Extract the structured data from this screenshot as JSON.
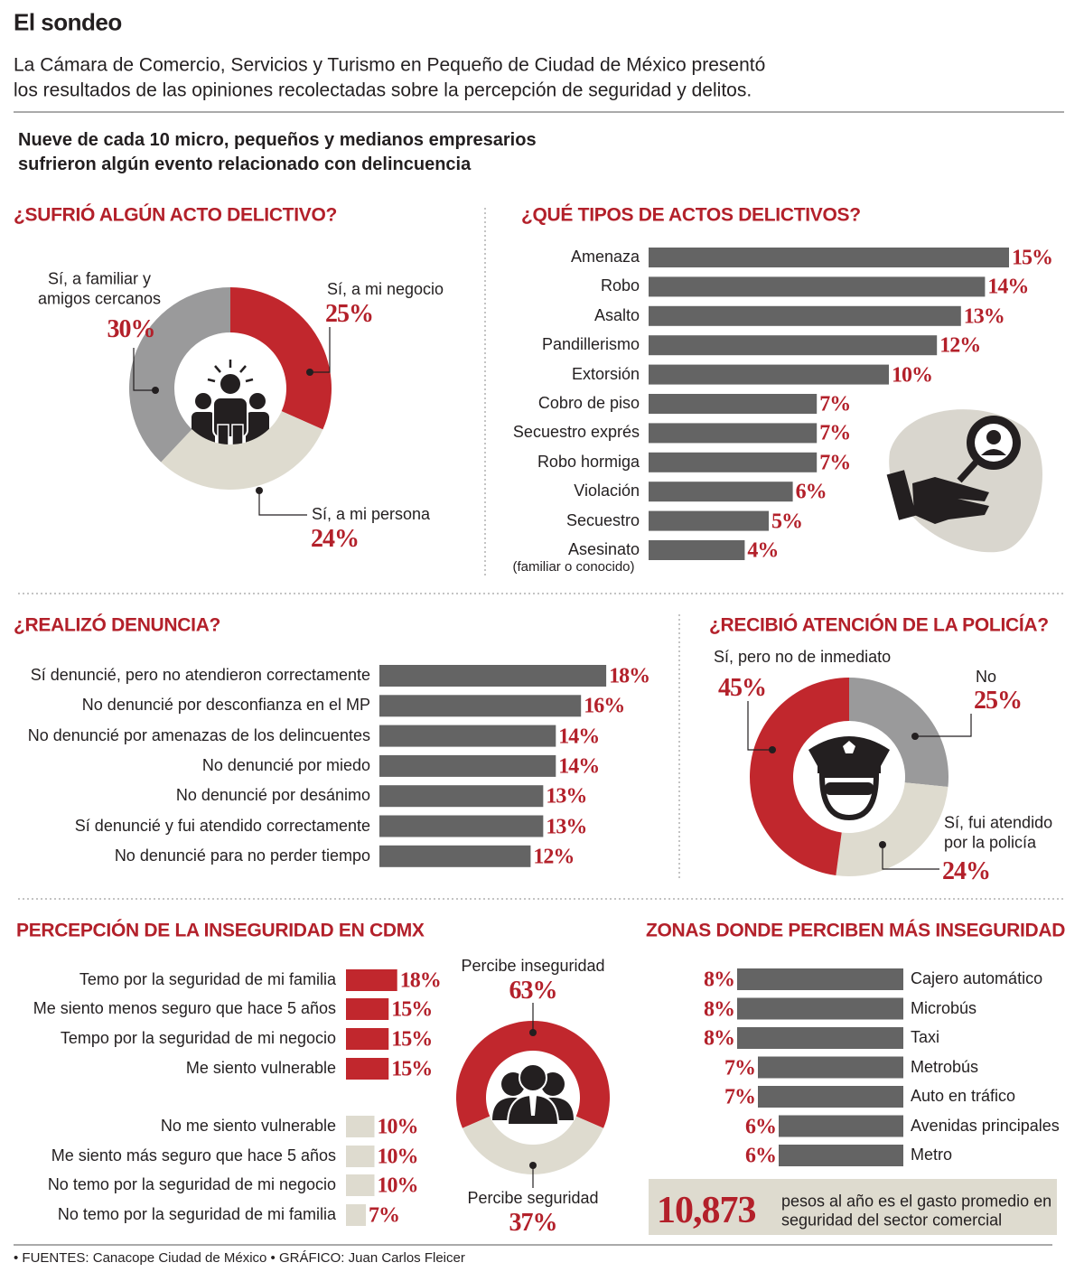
{
  "header": {
    "title": "El sondeo",
    "intro": [
      "La Cámara de Comercio, Servicios y Turismo en Pequeño de Ciudad de México presentó",
      "los resultados de las opiniones recolectadas sobre la percepción de seguridad y delitos."
    ],
    "subtitle": [
      "Nueve de cada 10 micro, pequeños y medianos empresarios",
      "sufrieron algún evento relacionado con delincuencia"
    ]
  },
  "chart_data": [
    {
      "type": "donut",
      "title": "¿SUFRIÓ ALGÚN ACTO DELICTIVO?",
      "categories": [
        "Sí, a mi negocio",
        "Sí, a mi persona",
        "Sí, a familiar y amigos cercanos"
      ],
      "values": [
        25,
        24,
        30
      ],
      "value_labels": [
        "25%",
        "24%",
        "30%"
      ],
      "colors": [
        "#c1272d",
        "#dedbcf",
        "#9a9a9b"
      ]
    },
    {
      "type": "hbar",
      "title": "¿QUÉ TIPOS DE ACTOS DELICTIVOS?",
      "categories": [
        "Amenaza",
        "Robo",
        "Asalto",
        "Pandillerismo",
        "Extorsión",
        "Cobro de piso",
        "Secuestro exprés",
        "Robo hormiga",
        "Violación",
        "Secuestro",
        "Asesinato"
      ],
      "values": [
        15,
        14,
        13,
        12,
        10,
        7,
        7,
        7,
        6,
        5,
        4
      ],
      "value_labels": [
        "15%",
        "14%",
        "13%",
        "12%",
        "10%",
        "7%",
        "7%",
        "7%",
        "6%",
        "5%",
        "4%"
      ],
      "color": "#646464",
      "annotations": [
        "(familiar o conocido)"
      ]
    },
    {
      "type": "hbar",
      "title": "¿REALIZÓ DENUNCIA?",
      "categories": [
        "Sí denuncié, pero no atendieron correctamente",
        "No denuncié por desconfianza en el MP",
        "No denuncié por amenazas de los delincuentes",
        "No denuncié por miedo",
        "No denuncié por desánimo",
        "Sí denuncié y fui atendido correctamente",
        "No denuncié para no perder tiempo"
      ],
      "values": [
        18,
        16,
        14,
        14,
        13,
        13,
        12
      ],
      "value_labels": [
        "18%",
        "16%",
        "14%",
        "14%",
        "13%",
        "13%",
        "12%"
      ],
      "color": "#646464"
    },
    {
      "type": "donut",
      "title": "¿RECIBIÓ ATENCIÓN DE LA POLICÍA?",
      "categories": [
        "No",
        "Sí, fui atendido por la policía",
        "Sí, pero no de inmediato"
      ],
      "values": [
        25,
        24,
        45
      ],
      "value_labels": [
        "25%",
        "24%",
        "45%"
      ],
      "colors": [
        "#9a9a9b",
        "#dedbcf",
        "#c1272d"
      ]
    },
    {
      "type": "hbar",
      "title": "PERCEPCIÓN DE LA INSEGURIDAD EN CDMX",
      "categories": [
        "Temo por la seguridad de mi familia",
        "Me siento menos seguro que hace 5 años",
        "Tempo por la seguridad de mi negocio",
        "Me siento vulnerable",
        "No me siento vulnerable",
        "Me siento más seguro que hace 5 años",
        "No temo por la seguridad de mi negocio",
        "No temo por la seguridad de mi familia"
      ],
      "values": [
        18,
        15,
        15,
        15,
        10,
        10,
        10,
        7
      ],
      "value_labels": [
        "18%",
        "15%",
        "15%",
        "15%",
        "10%",
        "10%",
        "10%",
        "7%"
      ],
      "colors": [
        "#c1272d",
        "#c1272d",
        "#c1272d",
        "#c1272d",
        "#dedbcf",
        "#dedbcf",
        "#dedbcf",
        "#dedbcf"
      ]
    },
    {
      "type": "donut",
      "categories": [
        "Percibe inseguridad",
        "Percibe seguridad"
      ],
      "values": [
        63,
        37
      ],
      "value_labels": [
        "63%",
        "37%"
      ],
      "colors": [
        "#c1272d",
        "#dedbcf"
      ]
    },
    {
      "type": "hbar",
      "title": "ZONAS DONDE PERCIBEN MÁS INSEGURIDAD",
      "categories": [
        "Cajero automático",
        "Microbús",
        "Taxi",
        "Metrobús",
        "Auto en tráfico",
        "Avenidas principales",
        "Metro"
      ],
      "values": [
        8,
        8,
        8,
        7,
        7,
        6,
        6
      ],
      "value_labels": [
        "8%",
        "8%",
        "8%",
        "7%",
        "7%",
        "6%",
        "6%"
      ],
      "color": "#646464"
    }
  ],
  "callout": {
    "figure": "10,873",
    "text": "pesos al año es el gasto promedio en seguridad del sector comercial"
  },
  "footer": "• FUENTES: Canacope Ciudad de México • GRÁFICO: Juan Carlos Fleicer"
}
